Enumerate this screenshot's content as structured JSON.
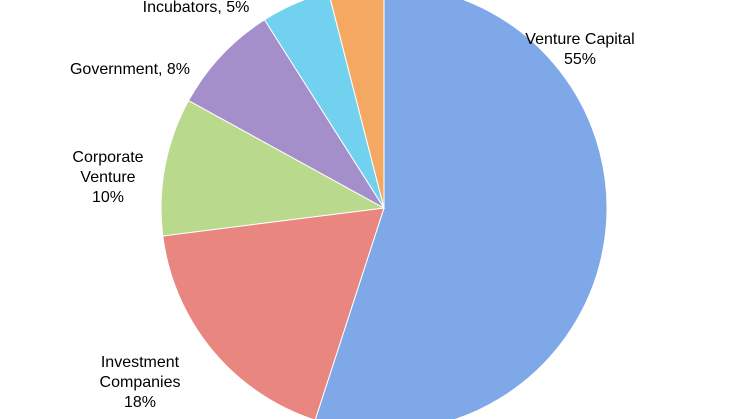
{
  "chart_data": {
    "type": "pie",
    "values": [
      55,
      18,
      10,
      8,
      5,
      4
    ],
    "value_labels": [
      "Venture Capital\n55%",
      "Investment\nCompanies\n18%",
      "Corporate\nVenture\n10%",
      "Government, 8%",
      "Incubators, 5%",
      null
    ],
    "colors": [
      "#7ea8e8",
      "#e8867f",
      "#b9d98c",
      "#a48fcb",
      "#72d1ef",
      "#f4a862"
    ],
    "start_angle": 0,
    "direction": "clockwise"
  }
}
